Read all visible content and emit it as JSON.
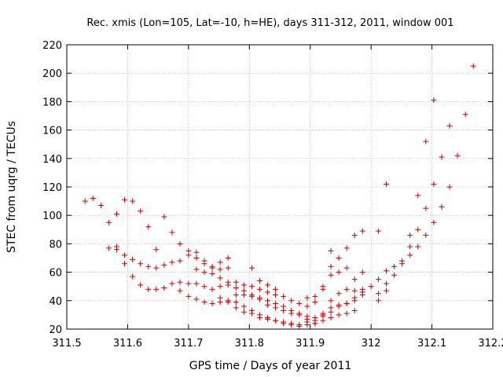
{
  "chart_data": {
    "type": "scatter",
    "title": "Rec. xmis (Lon=105, Lat=-10, h=HE), days 311-312, 2011, window 001",
    "xlabel": "GPS time / Days of year 2011",
    "ylabel": "STEC from uqrg / TECUs",
    "xlim": [
      311.5,
      312.2
    ],
    "ylim": [
      20,
      220
    ],
    "xticks": [
      311.5,
      311.6,
      311.7,
      311.8,
      311.9,
      312,
      312.1,
      312.2
    ],
    "xtick_labels": [
      "311.5",
      "311.6",
      "311.7",
      "311.8",
      "311.9",
      "312",
      "312.1",
      "312.2"
    ],
    "yticks": [
      20,
      40,
      60,
      80,
      100,
      120,
      140,
      160,
      180,
      200,
      220
    ],
    "ytick_labels": [
      "20",
      "40",
      "60",
      "80",
      "100",
      "120",
      "140",
      "160",
      "180",
      "200",
      "220"
    ],
    "grid": true,
    "marker": "+",
    "color": "#cc0000",
    "series": [
      {
        "name": "STEC",
        "points": [
          [
            311.53,
            110
          ],
          [
            311.543,
            112
          ],
          [
            311.556,
            107
          ],
          [
            311.569,
            95
          ],
          [
            311.582,
            101
          ],
          [
            311.595,
            111
          ],
          [
            311.608,
            110
          ],
          [
            311.621,
            103
          ],
          [
            311.634,
            92
          ],
          [
            311.66,
            99
          ],
          [
            311.673,
            88
          ],
          [
            311.686,
            80
          ],
          [
            311.7,
            75
          ],
          [
            311.713,
            74
          ],
          [
            311.569,
            77
          ],
          [
            311.582,
            78
          ],
          [
            311.595,
            72
          ],
          [
            311.608,
            69
          ],
          [
            311.621,
            66
          ],
          [
            311.634,
            64
          ],
          [
            311.647,
            63
          ],
          [
            311.66,
            65
          ],
          [
            311.673,
            67
          ],
          [
            311.686,
            68
          ],
          [
            311.7,
            72
          ],
          [
            311.713,
            70
          ],
          [
            311.726,
            68
          ],
          [
            311.739,
            63
          ],
          [
            311.752,
            67
          ],
          [
            311.765,
            70
          ],
          [
            311.647,
            76
          ],
          [
            311.582,
            76
          ],
          [
            311.595,
            66
          ],
          [
            311.608,
            57
          ],
          [
            311.621,
            51
          ],
          [
            311.634,
            48
          ],
          [
            311.647,
            48
          ],
          [
            311.66,
            49
          ],
          [
            311.673,
            52
          ],
          [
            311.686,
            53
          ],
          [
            311.7,
            52
          ],
          [
            311.713,
            52
          ],
          [
            311.726,
            50
          ],
          [
            311.739,
            48
          ],
          [
            311.752,
            50
          ],
          [
            311.765,
            51
          ],
          [
            311.778,
            53
          ],
          [
            311.791,
            51
          ],
          [
            311.804,
            50
          ],
          [
            311.817,
            48
          ],
          [
            311.83,
            46
          ],
          [
            311.843,
            44
          ],
          [
            311.686,
            47
          ],
          [
            311.7,
            43
          ],
          [
            311.713,
            41
          ],
          [
            311.726,
            39
          ],
          [
            311.739,
            38
          ],
          [
            311.752,
            39
          ],
          [
            311.765,
            39
          ],
          [
            311.778,
            35
          ],
          [
            311.791,
            32
          ],
          [
            311.804,
            31
          ],
          [
            311.817,
            28
          ],
          [
            311.83,
            27
          ],
          [
            311.843,
            26
          ],
          [
            311.856,
            24
          ],
          [
            311.869,
            23
          ],
          [
            311.882,
            22
          ],
          [
            311.895,
            23
          ],
          [
            311.908,
            24
          ],
          [
            311.921,
            26
          ],
          [
            311.934,
            28
          ],
          [
            311.947,
            30
          ],
          [
            311.96,
            31
          ],
          [
            311.973,
            33
          ],
          [
            311.713,
            62
          ],
          [
            311.726,
            60
          ],
          [
            311.739,
            59
          ],
          [
            311.752,
            56
          ],
          [
            311.765,
            53
          ],
          [
            311.778,
            49
          ],
          [
            311.791,
            47
          ],
          [
            311.804,
            44
          ],
          [
            311.817,
            42
          ],
          [
            311.83,
            40
          ],
          [
            311.843,
            38
          ],
          [
            311.856,
            36
          ],
          [
            311.869,
            33
          ],
          [
            311.882,
            31
          ],
          [
            311.895,
            29
          ],
          [
            311.908,
            28
          ],
          [
            311.921,
            29
          ],
          [
            311.934,
            32
          ],
          [
            311.947,
            36
          ],
          [
            311.96,
            38
          ],
          [
            311.973,
            42
          ],
          [
            311.986,
            46
          ],
          [
            312.0,
            50
          ],
          [
            311.726,
            66
          ],
          [
            311.739,
            64
          ],
          [
            311.752,
            62
          ],
          [
            311.765,
            63
          ],
          [
            311.778,
            44
          ],
          [
            311.791,
            44
          ],
          [
            311.804,
            43
          ],
          [
            311.817,
            41
          ],
          [
            311.83,
            37
          ],
          [
            311.843,
            35
          ],
          [
            311.856,
            33
          ],
          [
            311.869,
            31
          ],
          [
            311.882,
            30
          ],
          [
            311.895,
            27
          ],
          [
            311.908,
            26
          ],
          [
            311.921,
            30
          ],
          [
            311.934,
            40
          ],
          [
            311.947,
            45
          ],
          [
            311.96,
            48
          ],
          [
            311.973,
            55
          ],
          [
            311.986,
            60
          ],
          [
            311.752,
            42
          ],
          [
            311.765,
            40
          ],
          [
            311.778,
            39
          ],
          [
            311.791,
            36
          ],
          [
            311.804,
            33
          ],
          [
            311.817,
            30
          ],
          [
            311.83,
            28
          ],
          [
            311.843,
            26
          ],
          [
            311.856,
            25
          ],
          [
            311.869,
            24
          ],
          [
            311.882,
            23
          ],
          [
            311.895,
            25
          ],
          [
            311.908,
            24
          ],
          [
            311.921,
            31
          ],
          [
            311.934,
            35
          ],
          [
            311.947,
            37
          ],
          [
            311.96,
            38
          ],
          [
            311.973,
            40
          ],
          [
            311.986,
            44
          ],
          [
            311.804,
            63
          ],
          [
            311.817,
            54
          ],
          [
            311.83,
            51
          ],
          [
            311.843,
            48
          ],
          [
            311.856,
            43
          ],
          [
            311.869,
            40
          ],
          [
            311.882,
            38
          ],
          [
            311.895,
            36
          ],
          [
            311.908,
            39
          ],
          [
            311.921,
            48
          ],
          [
            311.934,
            58
          ],
          [
            311.947,
            70
          ],
          [
            311.96,
            77
          ],
          [
            311.973,
            86
          ],
          [
            311.986,
            89
          ],
          [
            311.921,
            50
          ],
          [
            311.934,
            75
          ],
          [
            311.895,
            42
          ],
          [
            311.908,
            43
          ],
          [
            311.934,
            64
          ],
          [
            311.947,
            60
          ],
          [
            311.96,
            63
          ],
          [
            311.973,
            47
          ],
          [
            311.986,
            48
          ],
          [
            312.012,
            40
          ],
          [
            312.012,
            45
          ],
          [
            312.012,
            55
          ],
          [
            312.012,
            89
          ],
          [
            312.025,
            47
          ],
          [
            312.025,
            52
          ],
          [
            312.025,
            61
          ],
          [
            312.025,
            122
          ],
          [
            312.038,
            58
          ],
          [
            312.038,
            64
          ],
          [
            312.051,
            66
          ],
          [
            312.051,
            68
          ],
          [
            312.064,
            72
          ],
          [
            312.064,
            78
          ],
          [
            312.064,
            86
          ],
          [
            312.077,
            78
          ],
          [
            312.077,
            90
          ],
          [
            312.077,
            114
          ],
          [
            312.09,
            86
          ],
          [
            312.09,
            105
          ],
          [
            312.09,
            152
          ],
          [
            312.103,
            95
          ],
          [
            312.103,
            122
          ],
          [
            312.103,
            181
          ],
          [
            312.116,
            106
          ],
          [
            312.116,
            141
          ],
          [
            312.129,
            120
          ],
          [
            312.129,
            163
          ],
          [
            312.142,
            142
          ],
          [
            312.155,
            171
          ],
          [
            312.168,
            205
          ]
        ]
      }
    ]
  }
}
